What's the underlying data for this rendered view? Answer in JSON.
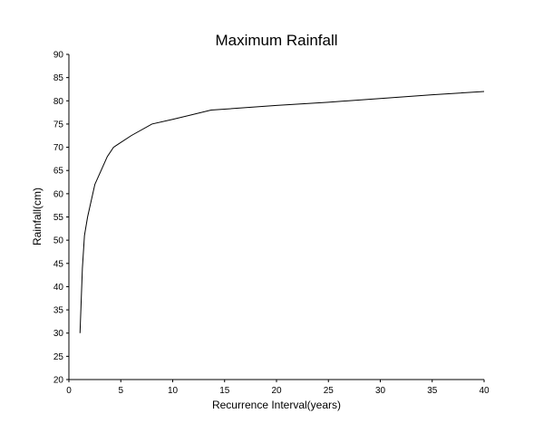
{
  "chart_data": {
    "type": "line",
    "title": "Maximum Rainfall",
    "xlabel": "Recurrence Interval(years)",
    "ylabel": "Rainfall(cm)",
    "xlim": [
      0,
      40
    ],
    "ylim": [
      20,
      90
    ],
    "grid": false,
    "x_ticks": [
      0,
      5,
      10,
      15,
      20,
      25,
      30,
      35,
      40
    ],
    "y_ticks": [
      20,
      25,
      30,
      35,
      40,
      45,
      50,
      55,
      60,
      65,
      70,
      75,
      80,
      85,
      90
    ],
    "series": [
      {
        "x": [
          1.07,
          1.3,
          1.5,
          1.8,
          2.0,
          2.5,
          3.0,
          3.7,
          4.3,
          6.0,
          8.0,
          10.0,
          13.7,
          20.0,
          25.0,
          30.0,
          35.0,
          40.0
        ],
        "y": [
          30,
          44,
          51,
          55,
          57,
          62,
          64.5,
          68,
          70,
          72.5,
          75,
          76,
          78,
          79,
          79.7,
          80.5,
          81.3,
          82
        ],
        "color": "#000000"
      }
    ]
  }
}
